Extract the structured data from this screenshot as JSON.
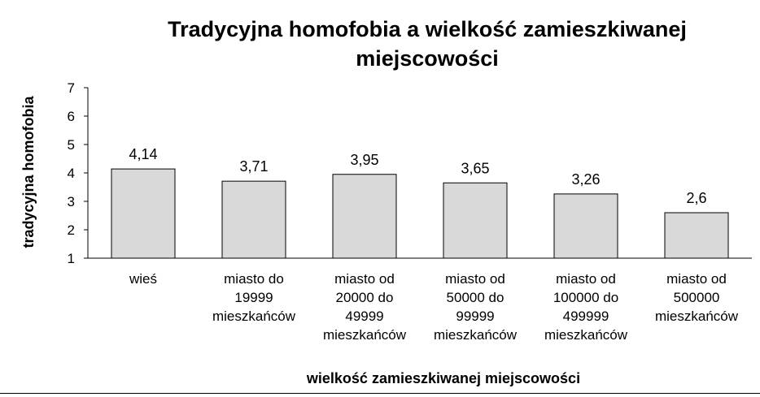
{
  "chart_data": {
    "type": "bar",
    "title": "Tradycyjna homofobia a wielkość zamieszkiwanej miejscowości",
    "xlabel": "wielkość zamieszkiwanej miejscowości",
    "ylabel": "tradycyjna homofobia",
    "ylim": [
      1,
      7
    ],
    "yticks": [
      1,
      2,
      3,
      4,
      5,
      6,
      7
    ],
    "grid": false,
    "legend": "none",
    "bar_color": "#d9d9d9",
    "bar_edge_color": "#000000",
    "categories": [
      "wieś",
      "miasto do 19999 mieszkańców",
      "miasto od 20000 do 49999 mieszkańców",
      "miasto od 50000 do 99999 mieszkańców",
      "miasto od 100000 do 499999 mieszkańców",
      "miasto od 500000 mieszkańców"
    ],
    "category_lines": [
      [
        "wieś"
      ],
      [
        "miasto do",
        "19999",
        "mieszkańców"
      ],
      [
        "miasto od",
        "20000 do",
        "49999",
        "mieszkańców"
      ],
      [
        "miasto od",
        "50000 do",
        "99999",
        "mieszkańców"
      ],
      [
        "miasto od",
        "100000 do",
        "499999",
        "mieszkańców"
      ],
      [
        "miasto od",
        "500000",
        "mieszkańców"
      ]
    ],
    "values": [
      4.14,
      3.71,
      3.95,
      3.65,
      3.26,
      2.6
    ],
    "value_labels": [
      "4,14",
      "3,71",
      "3,95",
      "3,65",
      "3,26",
      "2,6"
    ]
  }
}
